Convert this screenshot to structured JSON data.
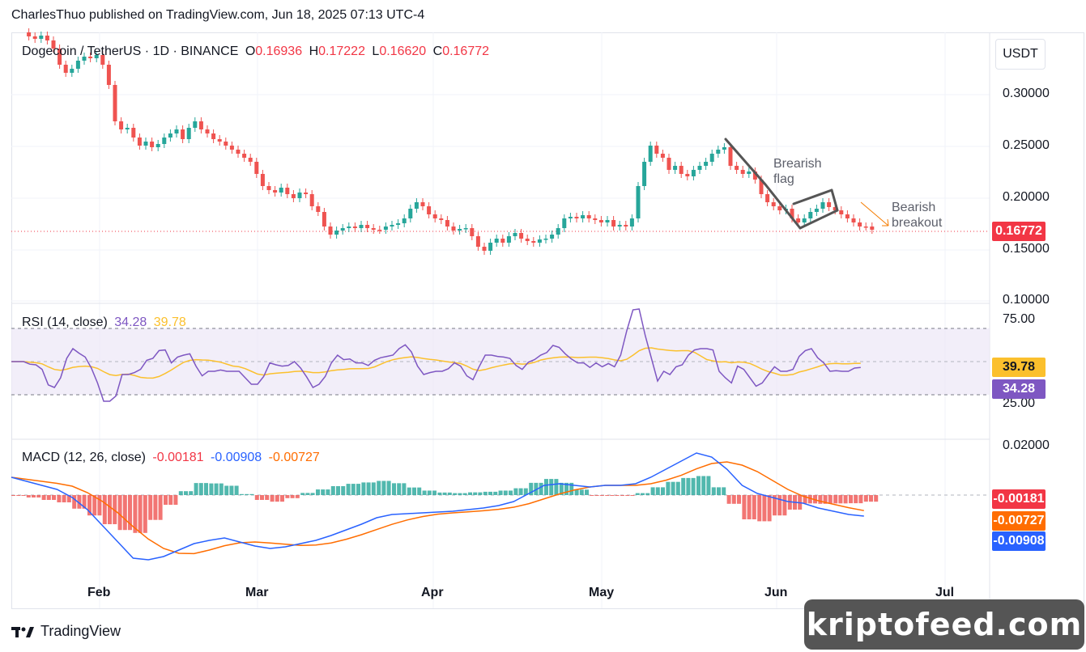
{
  "header": {
    "publish_line": "CharlesThuo published on TradingView.com, Jun 18, 2025 07:13 UTC-4"
  },
  "main_chart": {
    "symbol": "Dogecoin / TetherUS · 1D · BINANCE",
    "open_label": "O",
    "open_value": "0.16936",
    "high_label": "H",
    "high_value": "0.17222",
    "low_label": "L",
    "low_value": "0.16620",
    "close_label": "C",
    "close_value": "0.16772",
    "currency_button": "USDT",
    "price_ticks": [
      "0.30000",
      "0.25000",
      "0.20000",
      "0.15000",
      "0.10000"
    ],
    "last_price": "0.16772",
    "annotations": {
      "flag_line1": "Brearish",
      "flag_line2": "flag",
      "breakout_line1": "Bearish",
      "breakout_line2": "breakout"
    },
    "colors": {
      "up": "#26a69a",
      "down": "#ef5350",
      "last_price_bg": "#f23645"
    }
  },
  "rsi": {
    "label": "RSI (14, close)",
    "value": "34.28",
    "ma_value": "39.78",
    "ticks": [
      "75.00",
      "25.00"
    ],
    "badge_ma": "39.78",
    "badge_rsi": "34.28",
    "colors": {
      "rsi": "#7e57c2",
      "ma": "#fbc02d",
      "band": "#ede7f6"
    }
  },
  "macd": {
    "label": "MACD (12, 26, close)",
    "hist_value": "-0.00181",
    "macd_value": "-0.00908",
    "signal_value": "-0.00727",
    "ticks": [
      "0.02000"
    ],
    "badge_hist": "-0.00181",
    "badge_signal": "-0.00727",
    "badge_macd": "-0.00908",
    "colors": {
      "macd": "#2962ff",
      "signal": "#ff6d00",
      "hist_pos": "#26a69a",
      "hist_neg": "#ef5350"
    }
  },
  "time_axis": [
    "Feb",
    "Mar",
    "Apr",
    "May",
    "Jun",
    "Jul"
  ],
  "footer": {
    "brand": "TradingView",
    "watermark": "kriptofeed.com"
  }
}
